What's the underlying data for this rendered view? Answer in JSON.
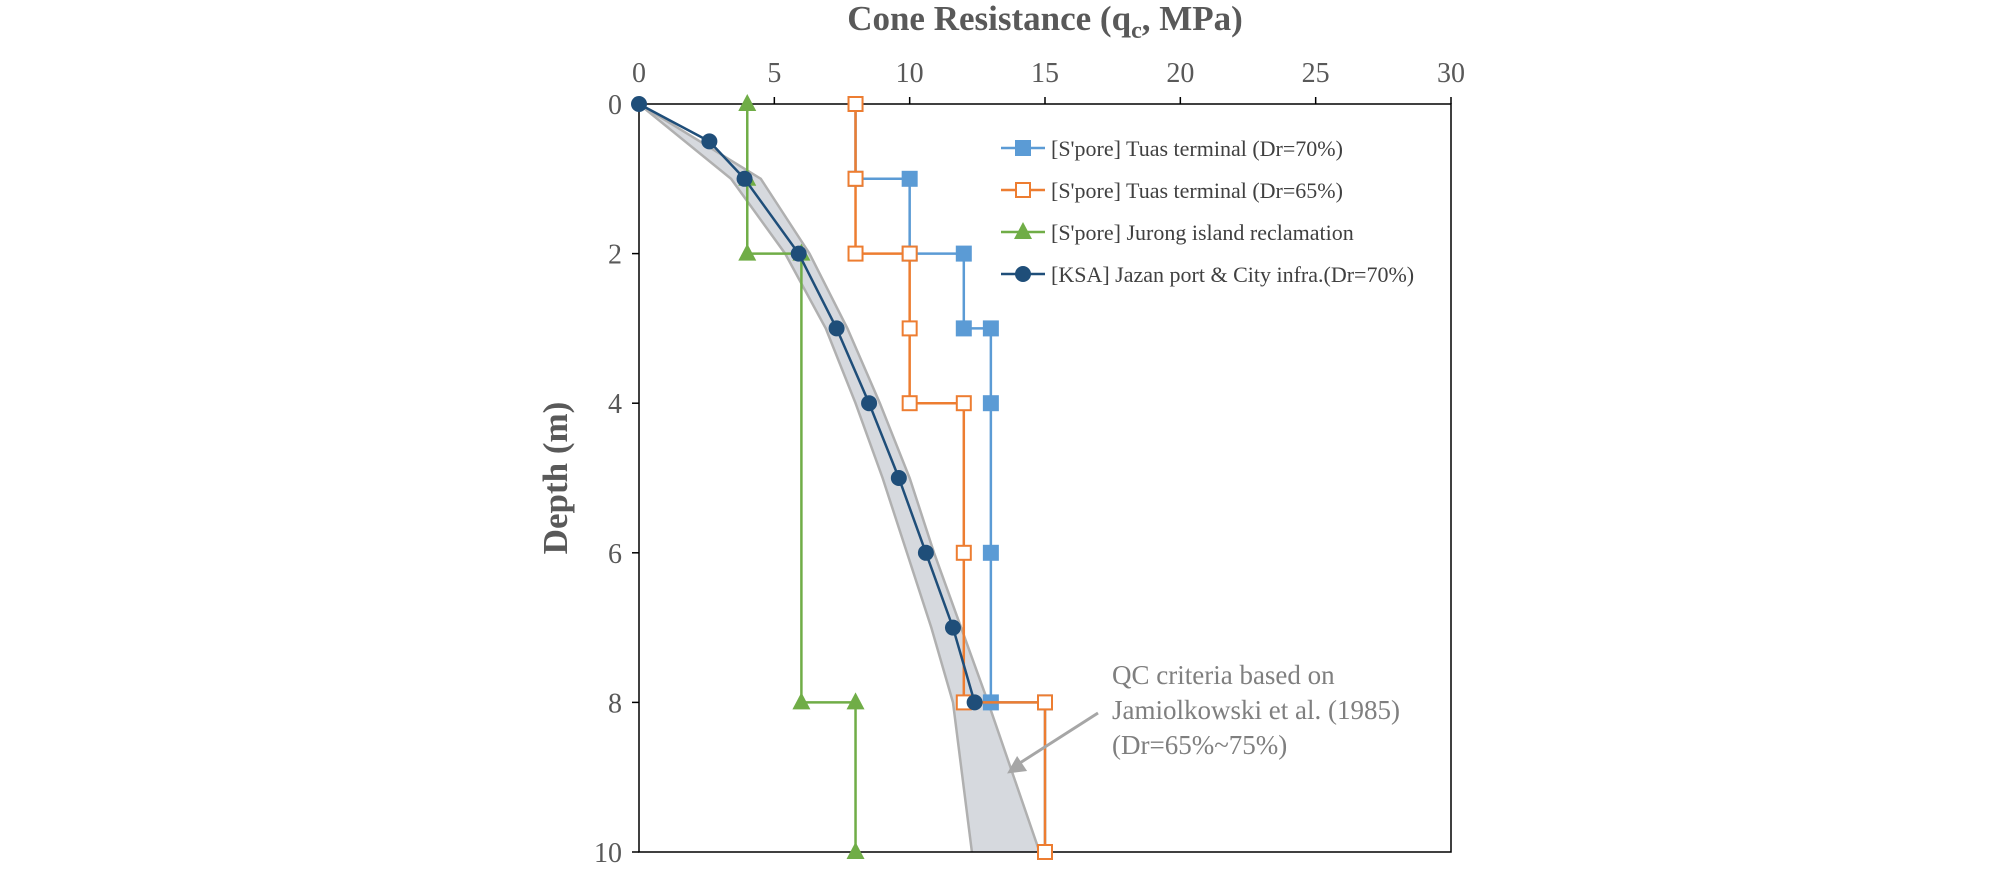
{
  "chart_data": {
    "type": "line",
    "x_axis": {
      "title_main": "Cone Resistance (q",
      "title_sub": "c",
      "title_end": ", MPa)",
      "position": "top",
      "range": [
        0,
        30
      ],
      "ticks": [
        0,
        5,
        10,
        15,
        20,
        25,
        30
      ]
    },
    "y_axis": {
      "title": "Depth (m)",
      "reversed": true,
      "range": [
        0,
        10
      ],
      "ticks": [
        0,
        2,
        4,
        6,
        8,
        10
      ]
    },
    "grid": false,
    "legend_position": "top-right",
    "series": [
      {
        "name": "[S'pore] Tuas terminal (Dr=70%)",
        "color": "#5b9bd5",
        "marker": "square-filled",
        "points": [
          [
            8,
            0
          ],
          [
            8,
            1
          ],
          [
            10,
            1
          ],
          [
            10,
            2
          ],
          [
            12,
            2
          ],
          [
            12,
            3
          ],
          [
            13,
            3
          ],
          [
            13,
            4
          ],
          [
            13,
            6
          ],
          [
            13,
            8
          ],
          [
            15,
            8
          ],
          [
            15,
            10
          ]
        ]
      },
      {
        "name": "[S'pore] Tuas terminal (Dr=65%)",
        "color": "#ed7d31",
        "marker": "square-open",
        "points": [
          [
            8,
            0
          ],
          [
            8,
            1
          ],
          [
            8,
            2
          ],
          [
            10,
            2
          ],
          [
            10,
            3
          ],
          [
            10,
            4
          ],
          [
            12,
            4
          ],
          [
            12,
            6
          ],
          [
            12,
            8
          ],
          [
            15,
            8
          ],
          [
            15,
            10
          ]
        ]
      },
      {
        "name": "[S'pore] Jurong island reclamation",
        "color": "#70ad47",
        "marker": "triangle",
        "points": [
          [
            4,
            0
          ],
          [
            4,
            1
          ],
          [
            4,
            2
          ],
          [
            6,
            2
          ],
          [
            6,
            8
          ],
          [
            8,
            8
          ],
          [
            8,
            10
          ]
        ]
      },
      {
        "name": "[KSA] Jazan port & City infra.(Dr=70%)",
        "color": "#1f4e79",
        "marker": "circle",
        "points": [
          [
            0,
            0
          ],
          [
            2.6,
            0.5
          ],
          [
            3.9,
            1
          ],
          [
            5.9,
            2
          ],
          [
            7.3,
            3
          ],
          [
            8.5,
            4
          ],
          [
            9.6,
            5
          ],
          [
            10.6,
            6
          ],
          [
            11.6,
            7
          ],
          [
            12.4,
            8
          ]
        ]
      }
    ],
    "band": {
      "color": "#d6d9de",
      "edge_color": "#b0b0b0",
      "lower": [
        [
          0,
          0
        ],
        [
          3.4,
          1
        ],
        [
          5.4,
          2
        ],
        [
          6.9,
          3
        ],
        [
          8.0,
          4
        ],
        [
          9.0,
          5
        ],
        [
          9.9,
          6
        ],
        [
          10.8,
          7
        ],
        [
          11.6,
          8
        ],
        [
          12.3,
          10
        ]
      ],
      "upper": [
        [
          0,
          0
        ],
        [
          4.5,
          1
        ],
        [
          6.3,
          2
        ],
        [
          7.7,
          3
        ],
        [
          8.9,
          4
        ],
        [
          10.0,
          5
        ],
        [
          10.9,
          6
        ],
        [
          11.9,
          7
        ],
        [
          12.9,
          8
        ],
        [
          14.8,
          10
        ]
      ]
    },
    "annotation": {
      "lines": [
        "QC criteria based on",
        "Jamiolkowski  et al. (1985)",
        "(Dr=65%~75%)"
      ],
      "arrow_target": [
        13.6,
        8.95
      ]
    }
  }
}
